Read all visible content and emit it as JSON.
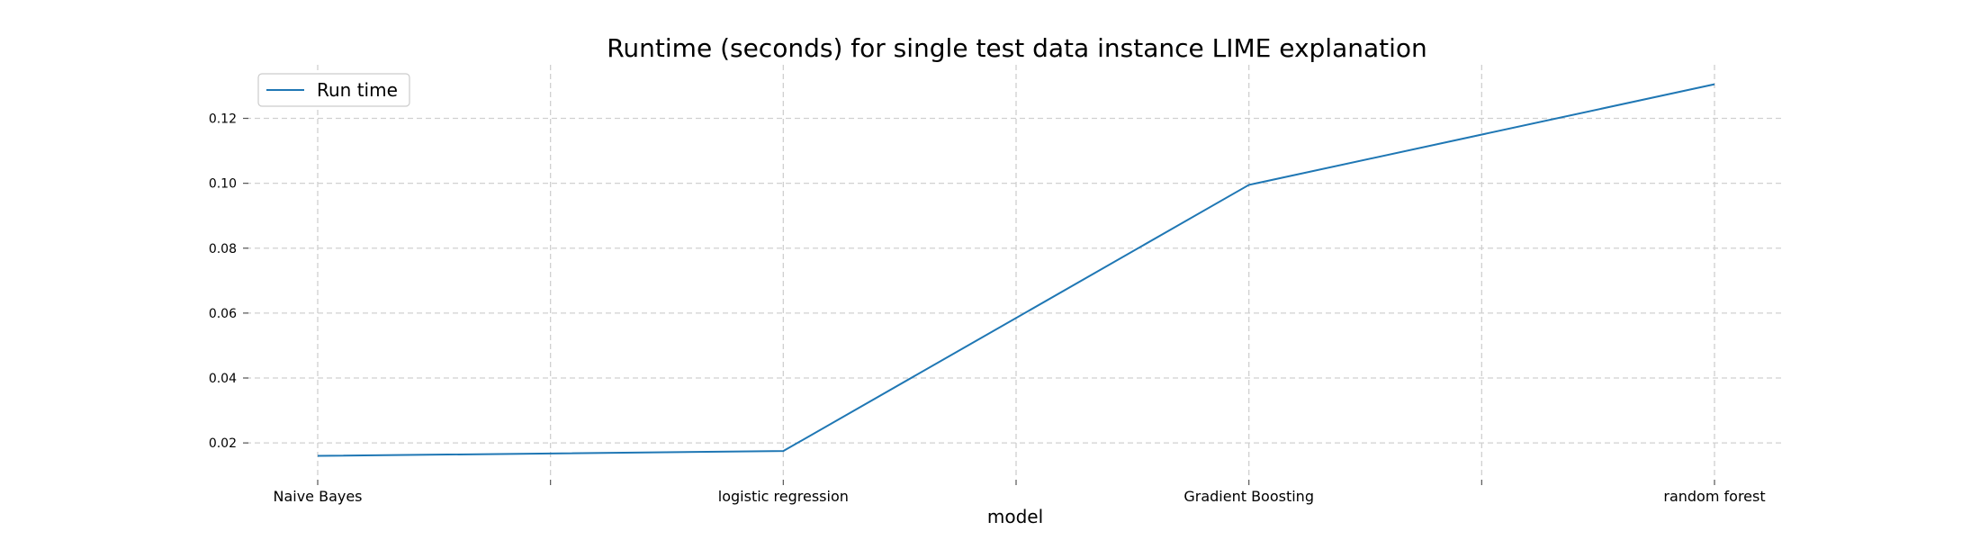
{
  "chart_data": {
    "type": "line",
    "title": "Runtime (seconds) for single test data instance LIME explanation",
    "xlabel": "model",
    "ylabel": "",
    "categories": [
      "Naive Bayes",
      "logistic regression",
      "Gradient Boosting",
      "random forest"
    ],
    "series": [
      {
        "name": "Run time",
        "values": [
          0.016,
          0.0175,
          0.0995,
          0.1305
        ],
        "color": "#1f77b4"
      }
    ],
    "ylim": [
      0.0095,
      0.1365
    ],
    "yticks": [
      "0.02",
      "0.04",
      "0.06",
      "0.08",
      "0.10",
      "0.12"
    ],
    "grid": true,
    "legend": "top-left"
  }
}
